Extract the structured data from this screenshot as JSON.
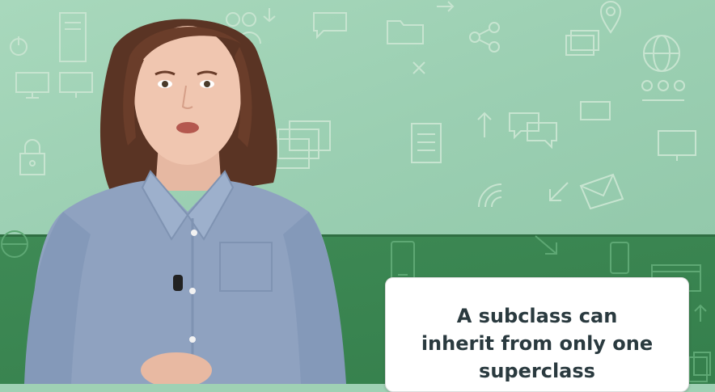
{
  "caption": {
    "lines": [
      "A subclass can",
      "inherit from only one",
      "superclass"
    ]
  },
  "icons": {
    "top": [
      "monitor-icon",
      "desktop-tower-icon",
      "power-icon",
      "chat-bubble-icon",
      "people-icon",
      "folder-icon",
      "share-icon",
      "location-pin-icon",
      "globe-icon",
      "network-icon",
      "lock-icon",
      "stack-windows-icon",
      "document-icon",
      "wifi-icon",
      "envelope-icon",
      "speech-bubbles-icon",
      "arrow-icon",
      "close-x-icon"
    ],
    "bottom": [
      "phone-icon",
      "browser-window-icon",
      "files-icon",
      "arrow-up-icon",
      "globe-icon"
    ]
  },
  "colors": {
    "background_top": "#a8d8bc",
    "background_bottom": "#3e8a55",
    "caption_text": "#2a3a3f",
    "card": "#ffffff"
  }
}
